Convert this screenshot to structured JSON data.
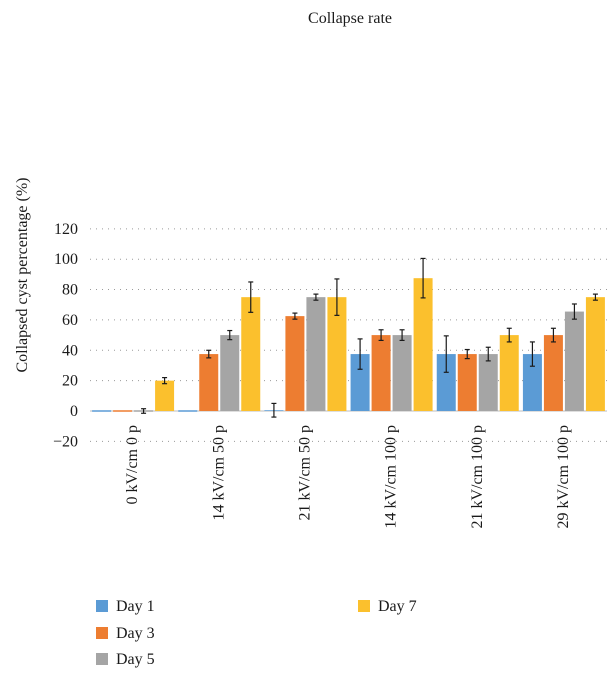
{
  "chart_data": {
    "type": "bar",
    "title": "Collapse rate",
    "xlabel": "",
    "ylabel": "Collapsed cyst percentage (%)",
    "ylim": [
      -20,
      120
    ],
    "yticks": [
      -20,
      0,
      20,
      40,
      60,
      80,
      100,
      120
    ],
    "ytick_labels": [
      "−20",
      "0",
      "20",
      "40",
      "60",
      "80",
      "100",
      "120"
    ],
    "grid": true,
    "legend_position": "bottom",
    "categories": [
      "0 kV/cm 0 p",
      "14 kV/cm 50 p",
      "21 kV/cm 50 p",
      "14 kV/cm 100 p",
      "21 kV/cm 100 p",
      "29 kV/cm 100 p"
    ],
    "series": [
      {
        "name": "Day 1",
        "color": "#5b9bd5",
        "values": [
          0,
          0,
          0.5,
          37.5,
          37.5,
          37.5
        ],
        "errors": [
          0,
          0,
          4.5,
          10,
          12,
          8
        ]
      },
      {
        "name": "Day 3",
        "color": "#ed7d31",
        "values": [
          0,
          37.5,
          62.5,
          50,
          37.5,
          50
        ],
        "errors": [
          0,
          2.5,
          2,
          3.5,
          3,
          4.5
        ]
      },
      {
        "name": "Day 5",
        "color": "#a5a5a5",
        "values": [
          0,
          50,
          75,
          50,
          37.5,
          65.5
        ],
        "errors": [
          1.5,
          3,
          2,
          3.5,
          4.5,
          5
        ]
      },
      {
        "name": "Day 7",
        "color": "#fbc02d",
        "values": [
          20,
          75,
          75,
          87.5,
          50,
          75
        ],
        "errors": [
          2,
          10,
          12,
          13,
          4.5,
          2
        ]
      }
    ]
  }
}
